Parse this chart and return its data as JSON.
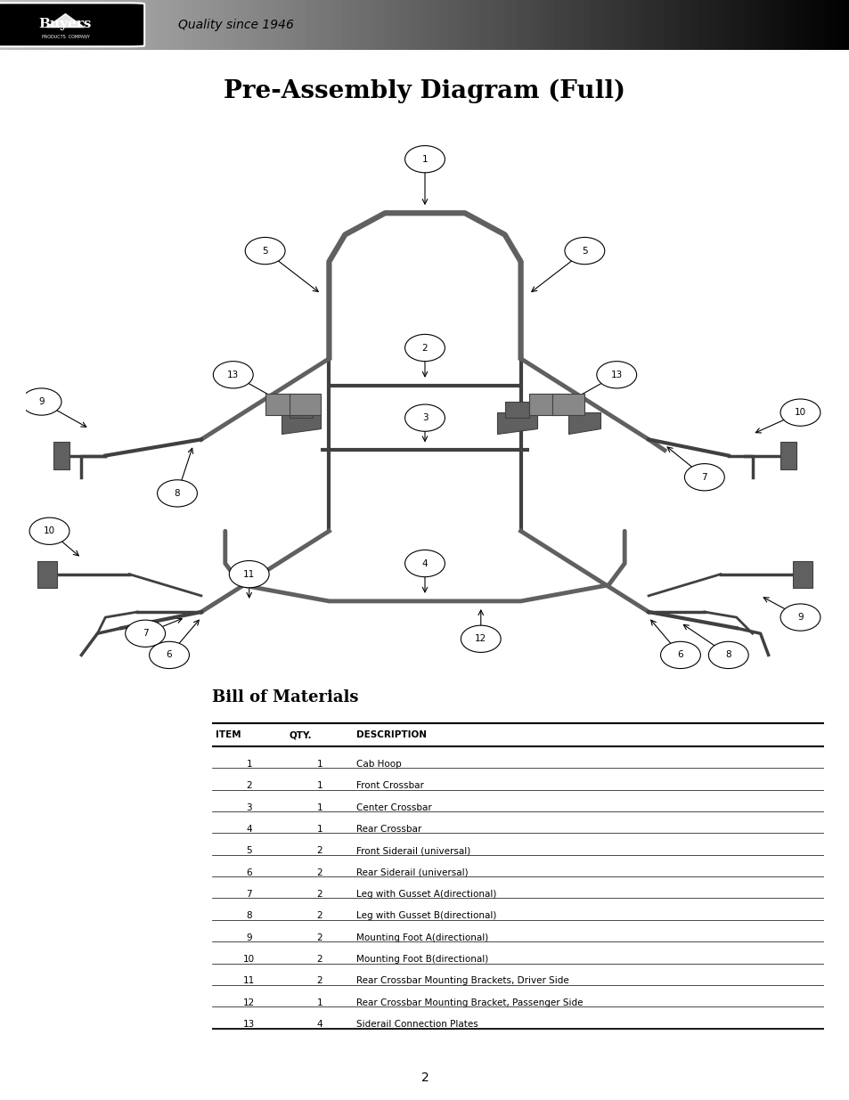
{
  "title": "Pre-Assembly Diagram (Full)",
  "page_number": "2",
  "header_text": "Quality since 1946",
  "bom_title": "Bill of Materials",
  "bom_headers": [
    "ITEM",
    "QTY.",
    "DESCRIPTION"
  ],
  "bom_rows": [
    [
      "1",
      "1",
      "Cab Hoop"
    ],
    [
      "2",
      "1",
      "Front Crossbar"
    ],
    [
      "3",
      "1",
      "Center Crossbar"
    ],
    [
      "4",
      "1",
      "Rear Crossbar"
    ],
    [
      "5",
      "2",
      "Front Siderail (universal)"
    ],
    [
      "6",
      "2",
      "Rear Siderail (universal)"
    ],
    [
      "7",
      "2",
      "Leg with Gusset A(directional)"
    ],
    [
      "8",
      "2",
      "Leg with Gusset B(directional)"
    ],
    [
      "9",
      "2",
      "Mounting Foot A(directional)"
    ],
    [
      "10",
      "2",
      "Mounting Foot B(directional)"
    ],
    [
      "11",
      "2",
      "Rear Crossbar Mounting Brackets, Driver Side"
    ],
    [
      "12",
      "1",
      "Rear Crossbar Mounting Bracket, Passenger Side"
    ],
    [
      "13",
      "4",
      "Siderail Connection Plates"
    ]
  ],
  "background_color": "#ffffff",
  "header_bg_start": "#c0c0c0",
  "header_bg_end": "#000000",
  "diagram_area": [
    0.03,
    0.37,
    0.97,
    0.88
  ],
  "bom_area": [
    0.25,
    0.05,
    0.97,
    0.38
  ]
}
